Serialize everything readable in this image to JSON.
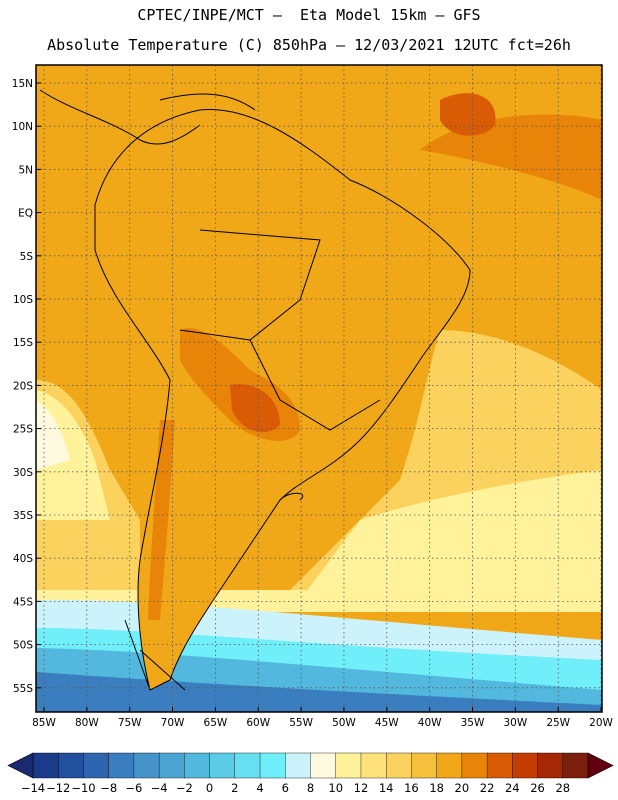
{
  "header": {
    "line1": "CPTEC/INPE/MCT –  Eta Model 15km – GFS",
    "line2": "Absolute Temperature (C) 850hPa – 12/03/2021 12UTC fct=26h"
  },
  "map": {
    "lat_labels": [
      "15N",
      "10N",
      "5N",
      "EQ",
      "5S",
      "10S",
      "15S",
      "20S",
      "25S",
      "30S",
      "35S",
      "40S",
      "45S",
      "50S",
      "55S"
    ],
    "lon_labels": [
      "85W",
      "80W",
      "75W",
      "70W",
      "65W",
      "60W",
      "55W",
      "50W",
      "45W",
      "40W",
      "35W",
      "30W",
      "25W",
      "20W"
    ]
  },
  "colorbar": {
    "labels": [
      "-14",
      "-12",
      "-10",
      "-8",
      "-6",
      "-4",
      "-2",
      "0",
      "2",
      "4",
      "6",
      "8",
      "10",
      "12",
      "14",
      "16",
      "18",
      "20",
      "22",
      "24",
      "26",
      "28"
    ],
    "colors": [
      "#1a3a8a",
      "#23509e",
      "#2d65ae",
      "#3a7ebf",
      "#4593c8",
      "#4aa5d2",
      "#52b8dd",
      "#5ccbe6",
      "#66dff0",
      "#70eefa",
      "#ccf3fb",
      "#fff9e0",
      "#fff29a",
      "#ffe27a",
      "#fbd25e",
      "#f5c03c",
      "#f0a818",
      "#e88408",
      "#d95c04",
      "#c23c04",
      "#a52806",
      "#7c1e0c"
    ],
    "under_color": "#1a2a70",
    "over_color": "#60000f"
  }
}
